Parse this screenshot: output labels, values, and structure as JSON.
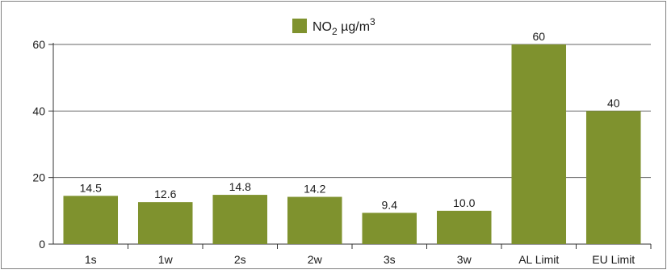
{
  "chart_data": {
    "type": "bar",
    "categories": [
      "1s",
      "1w",
      "2s",
      "2w",
      "3s",
      "3w",
      "AL Limit",
      "EU Limit"
    ],
    "series": [
      {
        "name": "NO2 µg/m3",
        "values": [
          14.5,
          12.6,
          14.8,
          14.2,
          9.4,
          10.0,
          60,
          40
        ],
        "data_labels": [
          "14.5",
          "12.6",
          "14.8",
          "14.2",
          "9.4",
          "10.0",
          "60",
          "40"
        ],
        "color": "#7f922e"
      }
    ],
    "legend": {
      "label_main": "NO",
      "label_sub": "2",
      "label_unit": " µg/m",
      "label_sup": "3",
      "placement": "top-center"
    },
    "yticks": [
      "0",
      "20",
      "40",
      "60"
    ],
    "ylim": [
      0,
      60
    ],
    "xlabel": "",
    "ylabel": "",
    "grid": true,
    "colors": {
      "bar": "#7f922e",
      "grid": "#666666",
      "axis": "#333333",
      "frame": "#808080"
    }
  }
}
